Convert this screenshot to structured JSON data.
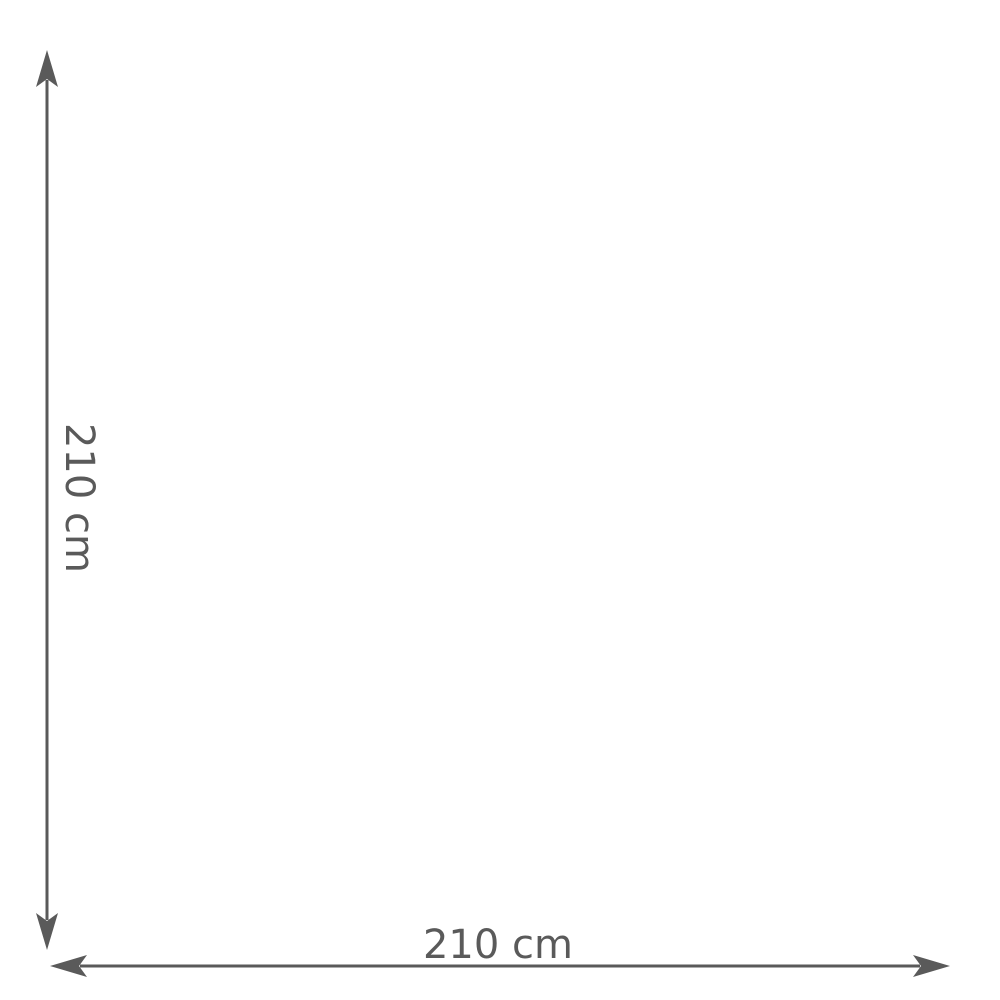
{
  "diagram": {
    "colors": {
      "line": "#5a5a5a",
      "background": "#ffffff"
    },
    "height_dimension": {
      "label": "210 cm",
      "orientation": "vertical"
    },
    "width_dimension": {
      "label": "210 cm",
      "orientation": "horizontal"
    }
  }
}
